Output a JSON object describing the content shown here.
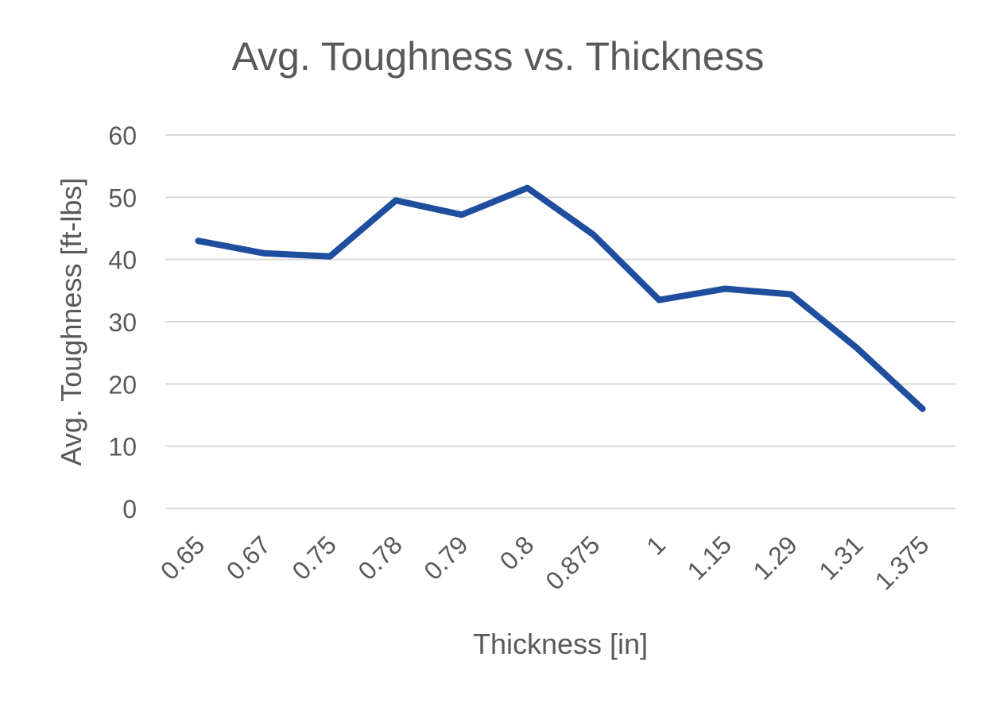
{
  "chart_data": {
    "type": "line",
    "title": "Avg. Toughness vs. Thickness",
    "xlabel": "Thickness [in]",
    "ylabel": "Avg. Toughness [ft-lbs]",
    "categories": [
      "0.65",
      "0.67",
      "0.75",
      "0.78",
      "0.79",
      "0.8",
      "0.875",
      "1",
      "1.15",
      "1.29",
      "1.31",
      "1.375"
    ],
    "series": [
      {
        "values": [
          43,
          41,
          40.5,
          49.5,
          47.2,
          51.5,
          44,
          33.5,
          35.3,
          34.4,
          25.8,
          16
        ]
      }
    ],
    "ylim": [
      0,
      60
    ],
    "yticks": [
      0,
      10,
      20,
      30,
      40,
      50,
      60
    ],
    "grid": true,
    "legend": "none",
    "colors": {
      "series": "#1f4e9e",
      "grid": "#d9d9d9",
      "text": "#595959"
    }
  }
}
